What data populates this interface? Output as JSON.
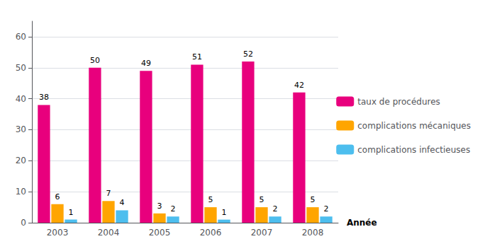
{
  "chart_data": {
    "type": "bar",
    "categories": [
      "2003",
      "2004",
      "2005",
      "2006",
      "2007",
      "2008"
    ],
    "series": [
      {
        "name": "taux de procédures",
        "color": "#E8007D",
        "values": [
          38,
          50,
          49,
          51,
          52,
          42
        ]
      },
      {
        "name": "complications mécaniques",
        "color": "#FFA500",
        "values": [
          6,
          7,
          3,
          5,
          5,
          5
        ]
      },
      {
        "name": "complications infectieuses",
        "color": "#4DBEEE",
        "values": [
          1,
          4,
          2,
          1,
          2,
          2
        ]
      }
    ],
    "xlabel": "Année",
    "ylim": [
      0,
      65
    ],
    "yticks": [
      0,
      10,
      20,
      30,
      40,
      50,
      60
    ],
    "grid": true,
    "legend": "right",
    "data_labels": true
  }
}
